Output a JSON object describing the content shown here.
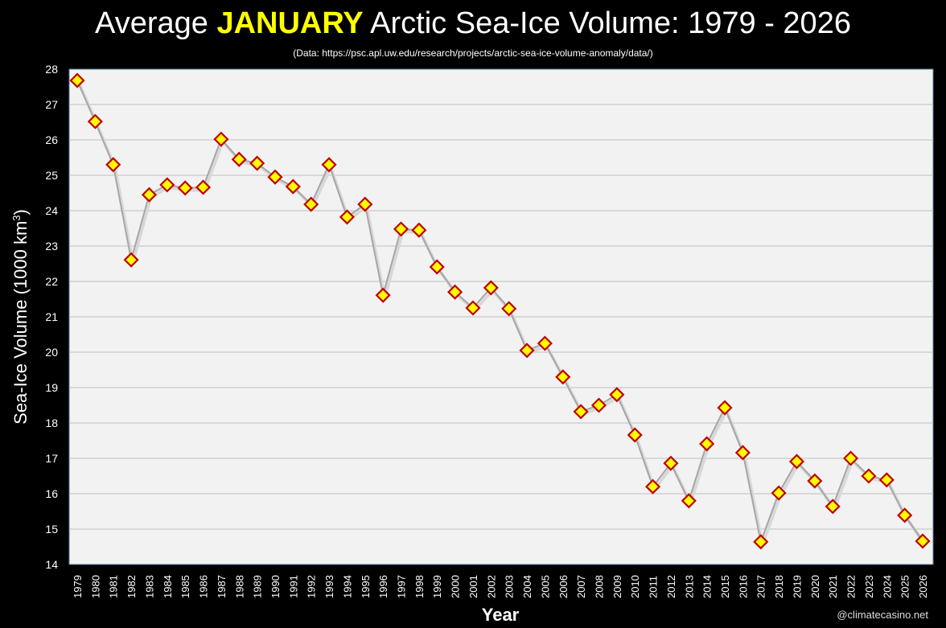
{
  "title": {
    "prefix": "Average ",
    "highlight": "JANUARY",
    "suffix": " Arctic Sea-Ice Volume: 1979 - 2026"
  },
  "subtitle": "(Data: https://psc.apl.uw.edu/research/projects/arctic-sea-ice-volume-anomaly/data/)",
  "credit": "@climatecasino.net",
  "chart_data": {
    "type": "line",
    "xlabel": "Year",
    "ylabel": "Sea-Ice Volume (1000 km",
    "ylabel_sup": "3",
    "ylabel_end": ")",
    "ylim": [
      14,
      28
    ],
    "yticks": [
      14,
      15,
      16,
      17,
      18,
      19,
      20,
      21,
      22,
      23,
      24,
      25,
      26,
      27,
      28
    ],
    "grid": true,
    "colors": {
      "line": "#a6a6a6",
      "marker_fill": "#ffff00",
      "marker_edge": "#c00000",
      "plot_bg": "#f2f2f2",
      "grid": "#bfbfbf"
    },
    "x": [
      1979,
      1980,
      1981,
      1982,
      1983,
      1984,
      1985,
      1986,
      1987,
      1988,
      1989,
      1990,
      1991,
      1992,
      1993,
      1994,
      1995,
      1996,
      1997,
      1998,
      1999,
      2000,
      2001,
      2002,
      2003,
      2004,
      2005,
      2006,
      2007,
      2008,
      2009,
      2010,
      2011,
      2012,
      2013,
      2014,
      2015,
      2016,
      2017,
      2018,
      2019,
      2020,
      2021,
      2022,
      2023,
      2024,
      2025,
      2026
    ],
    "y": [
      27.68,
      26.52,
      25.3,
      22.61,
      24.45,
      24.73,
      24.64,
      24.66,
      26.02,
      25.45,
      25.34,
      24.95,
      24.68,
      24.18,
      25.3,
      23.82,
      24.18,
      21.61,
      23.48,
      23.45,
      22.41,
      21.7,
      21.25,
      21.82,
      21.23,
      20.05,
      20.25,
      19.3,
      18.32,
      18.5,
      18.8,
      17.66,
      16.2,
      16.86,
      15.8,
      17.41,
      18.43,
      17.16,
      14.64,
      16.02,
      16.91,
      16.36,
      15.64,
      17.0,
      16.5,
      16.39,
      15.39,
      14.66
    ]
  }
}
